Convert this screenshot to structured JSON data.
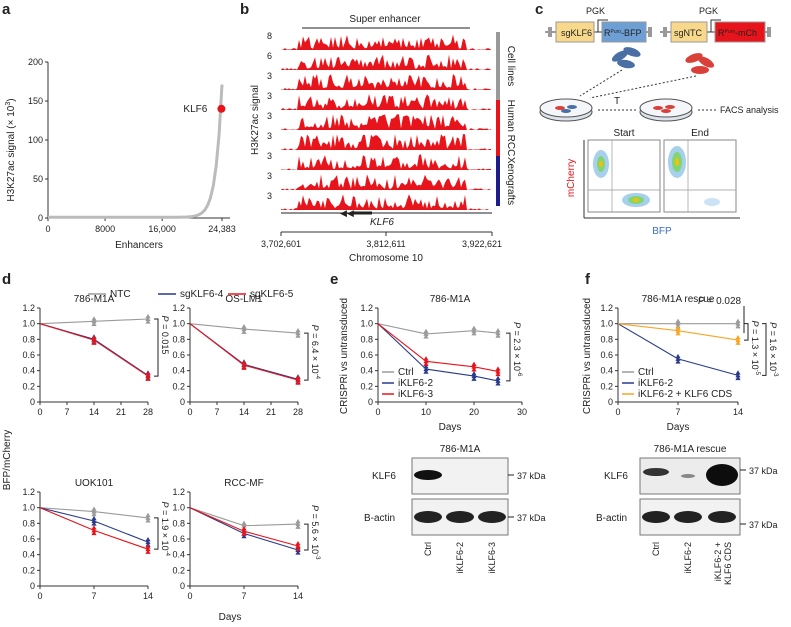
{
  "panel_labels": [
    "a",
    "b",
    "c",
    "d",
    "e",
    "f"
  ],
  "a": {
    "ylabel": "H3K27ac signal (× 10",
    "ylabel_sup": "3",
    "ylabel_close": ")",
    "xlabel": "Enhancers",
    "highlight": "KLF6",
    "chart_data": {
      "type": "scatter",
      "title": "",
      "xlabel": "Enhancers",
      "ylabel": "H3K27ac signal (x 10^3)",
      "xlim": [
        0,
        24383
      ],
      "ylim": [
        0,
        200
      ],
      "xticks": [
        "0",
        "8000",
        "16,000",
        "24,383"
      ],
      "yticks": [
        "0",
        "50",
        "100",
        "150",
        "200"
      ],
      "highlight": {
        "label": "KLF6",
        "x": 24300,
        "y": 140
      }
    }
  },
  "b": {
    "title": "Super enhancer",
    "ylabel": "H3K27ac signal",
    "track_scales": [
      "8",
      "6",
      "3",
      "3",
      "3",
      "3",
      "3",
      "3",
      "3"
    ],
    "groups": [
      "Cell lines",
      "Human RCC",
      "Xenografts"
    ],
    "group_colors": [
      "#999999",
      "#e8141c",
      "#1c1c8c"
    ],
    "gene": "KLF6",
    "xticks": [
      "3,702,601",
      "3,812,611",
      "3,922,621"
    ],
    "xlabel": "Chromosome 10"
  },
  "c": {
    "pgk": "PGK",
    "sgklf6": "sgKLF6",
    "bfp": "R",
    "bfp_sup": "Puro",
    "bfp_end": "-BFP",
    "sgntc": "sgNTC",
    "mcherry": "R",
    "mcherry_sup": "Puro",
    "mcherry_end": "-mCh",
    "time": "T",
    "facs": "FACS analysis",
    "start": "Start",
    "end": "End",
    "ylabel": "mCherry",
    "xlabel": "BFP"
  },
  "d": {
    "legend": [
      "NTC",
      "sgKLF6-4",
      "sgKLF6-5"
    ],
    "ylabel": "BFP/mCherry",
    "xlabel": "Days",
    "charts": [
      {
        "title": "786-M1A",
        "x": [
          0,
          14,
          28
        ],
        "xticks": [
          "0",
          "7",
          "14",
          "21",
          "28"
        ],
        "xmax": 28,
        "series": [
          {
            "name": "NTC",
            "values": [
              1.0,
              1.03,
              1.06
            ]
          },
          {
            "name": "sgKLF6-4",
            "values": [
              1.0,
              0.8,
              0.34
            ]
          },
          {
            "name": "sgKLF6-5",
            "values": [
              1.0,
              0.79,
              0.33
            ]
          }
        ],
        "pvalue": "P = 0.015"
      },
      {
        "title": "OS-LM1",
        "x": [
          0,
          14,
          28
        ],
        "xticks": [
          "0",
          "7",
          "14",
          "21",
          "28"
        ],
        "xmax": 28,
        "series": [
          {
            "name": "NTC",
            "values": [
              1.0,
              0.93,
              0.88
            ]
          },
          {
            "name": "sgKLF6-4",
            "values": [
              1.0,
              0.48,
              0.29
            ]
          },
          {
            "name": "sgKLF6-5",
            "values": [
              1.0,
              0.47,
              0.28
            ]
          }
        ],
        "pvalue": "P = 6.4 × 10",
        "pexp": "-4"
      },
      {
        "title": "UOK101",
        "x": [
          0,
          7,
          14
        ],
        "xticks": [
          "0",
          "7",
          "14"
        ],
        "xmax": 14,
        "series": [
          {
            "name": "NTC",
            "values": [
              1.0,
              0.95,
              0.87
            ]
          },
          {
            "name": "sgKLF6-4",
            "values": [
              1.0,
              0.83,
              0.56
            ]
          },
          {
            "name": "sgKLF6-5",
            "values": [
              1.0,
              0.71,
              0.47
            ]
          }
        ],
        "pvalue": "P = 1.9 × 10",
        "pexp": "-4"
      },
      {
        "title": "RCC-MF",
        "x": [
          0,
          7,
          14
        ],
        "xticks": [
          "0",
          "7",
          "14"
        ],
        "xmax": 14,
        "series": [
          {
            "name": "NTC",
            "values": [
              1.0,
              0.77,
              0.79
            ]
          },
          {
            "name": "sgKLF6-4",
            "values": [
              1.0,
              0.67,
              0.46
            ]
          },
          {
            "name": "sgKLF6-5",
            "values": [
              1.0,
              0.7,
              0.51
            ]
          }
        ],
        "pvalue": "P = 5.6 × 10",
        "pexp": "-3"
      }
    ],
    "yticks": [
      "0",
      "0.2",
      "0.4",
      "0.6",
      "0.8",
      "1.0",
      "1.2"
    ]
  },
  "e": {
    "title": "786-M1A",
    "ylabel": "CRISPRi vs untransduced",
    "xlabel": "Days",
    "legend": [
      "Ctrl",
      "iKLF6-2",
      "iKLF6-3"
    ],
    "pvalue": "P = 2.3 × 10",
    "pexp": "-6",
    "chart_data": {
      "type": "line",
      "x": [
        0,
        10,
        20,
        25
      ],
      "xlim": [
        0,
        30
      ],
      "ylim": [
        0,
        1.2
      ],
      "xticks": [
        "0",
        "10",
        "20",
        "30"
      ],
      "yticks": [
        "0",
        "0.2",
        "0.4",
        "0.6",
        "0.8",
        "1.0",
        "1.2"
      ],
      "series": [
        {
          "name": "Ctrl",
          "values": [
            1.0,
            0.87,
            0.91,
            0.88
          ]
        },
        {
          "name": "iKLF6-2",
          "values": [
            1.0,
            0.42,
            0.33,
            0.27
          ]
        },
        {
          "name": "iKLF6-3",
          "values": [
            1.0,
            0.52,
            0.45,
            0.39
          ]
        }
      ]
    },
    "blot_title": "786-M1A",
    "blot_rows": [
      "KLF6",
      "B-actin"
    ],
    "blot_lanes": [
      "Ctrl",
      "iKLF6-2",
      "iKLF6-3"
    ],
    "kda": [
      "37 kDa",
      "37 kDa"
    ]
  },
  "f": {
    "title": "786-M1A rescue",
    "ylabel": "CRISPRi vs untransduced",
    "xlabel": "Days",
    "legend": [
      "Ctrl",
      "iKLF6-2",
      "iKLF6-2 + KLF6 CDS"
    ],
    "p1": "P = 0.028",
    "p2": "P = 1.6 × 10",
    "p2exp": "-3",
    "p3": "P = 1.3 × 10",
    "p3exp": "-5",
    "chart_data": {
      "type": "line",
      "x": [
        0,
        7,
        14
      ],
      "xlim": [
        0,
        14
      ],
      "ylim": [
        0,
        1.2
      ],
      "xticks": [
        "0",
        "7",
        "14"
      ],
      "yticks": [
        "0",
        "0.2",
        "0.4",
        "0.6",
        "0.8",
        "1.0",
        "1.2"
      ],
      "series": [
        {
          "name": "Ctrl",
          "values": [
            1.0,
            1.0,
            1.0
          ]
        },
        {
          "name": "iKLF6-2",
          "values": [
            1.0,
            0.55,
            0.34
          ]
        },
        {
          "name": "iKLF6-2 + KLF6 CDS",
          "values": [
            1.0,
            0.91,
            0.79
          ]
        }
      ]
    },
    "blot_title": "786-M1A rescue",
    "blot_rows": [
      "KLF6",
      "B-actin"
    ],
    "blot_lanes": [
      "Ctrl",
      "iKLF6-2",
      "iKLF6-2 +",
      "KLF6 CDS"
    ],
    "kda": [
      "37 kDa",
      "37 kDa"
    ]
  },
  "colors": {
    "ntc": "#9a9a9a",
    "sg4": "#2a3a8c",
    "sg5": "#e8141c",
    "ctrl": "#9a9a9a",
    "i2": "#2a3a8c",
    "i3": "#e8141c",
    "rescue": "#f5a623",
    "track": "#e8141c"
  }
}
